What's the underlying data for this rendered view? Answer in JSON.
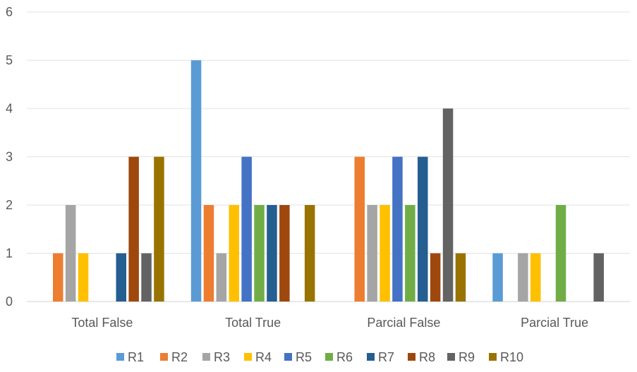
{
  "chart_data": {
    "type": "bar",
    "title": "",
    "xlabel": "",
    "ylabel": "",
    "ylim": [
      0,
      6
    ],
    "yticks": [
      0,
      1,
      2,
      3,
      4,
      5,
      6
    ],
    "grid": true,
    "legend_position": "bottom",
    "categories": [
      "Total False",
      "Total True",
      "Parcial False",
      "Parcial True"
    ],
    "series": [
      {
        "name": "R1",
        "color": "#5B9BD5",
        "values": [
          0,
          5,
          0,
          1
        ]
      },
      {
        "name": "R2",
        "color": "#ED7D31",
        "values": [
          1,
          2,
          3,
          0
        ]
      },
      {
        "name": "R3",
        "color": "#A5A5A5",
        "values": [
          2,
          1,
          2,
          1
        ]
      },
      {
        "name": "R4",
        "color": "#FFC000",
        "values": [
          1,
          2,
          2,
          1
        ]
      },
      {
        "name": "R5",
        "color": "#4472C4",
        "values": [
          0,
          3,
          3,
          0
        ]
      },
      {
        "name": "R6",
        "color": "#70AD47",
        "values": [
          0,
          2,
          2,
          2
        ]
      },
      {
        "name": "R7",
        "color": "#255E91",
        "values": [
          1,
          2,
          3,
          0
        ]
      },
      {
        "name": "R8",
        "color": "#9E480E",
        "values": [
          3,
          2,
          1,
          0
        ]
      },
      {
        "name": "R9",
        "color": "#636363",
        "values": [
          1,
          0,
          4,
          1
        ]
      },
      {
        "name": "R10",
        "color": "#997300",
        "values": [
          3,
          2,
          1,
          0
        ]
      }
    ]
  }
}
